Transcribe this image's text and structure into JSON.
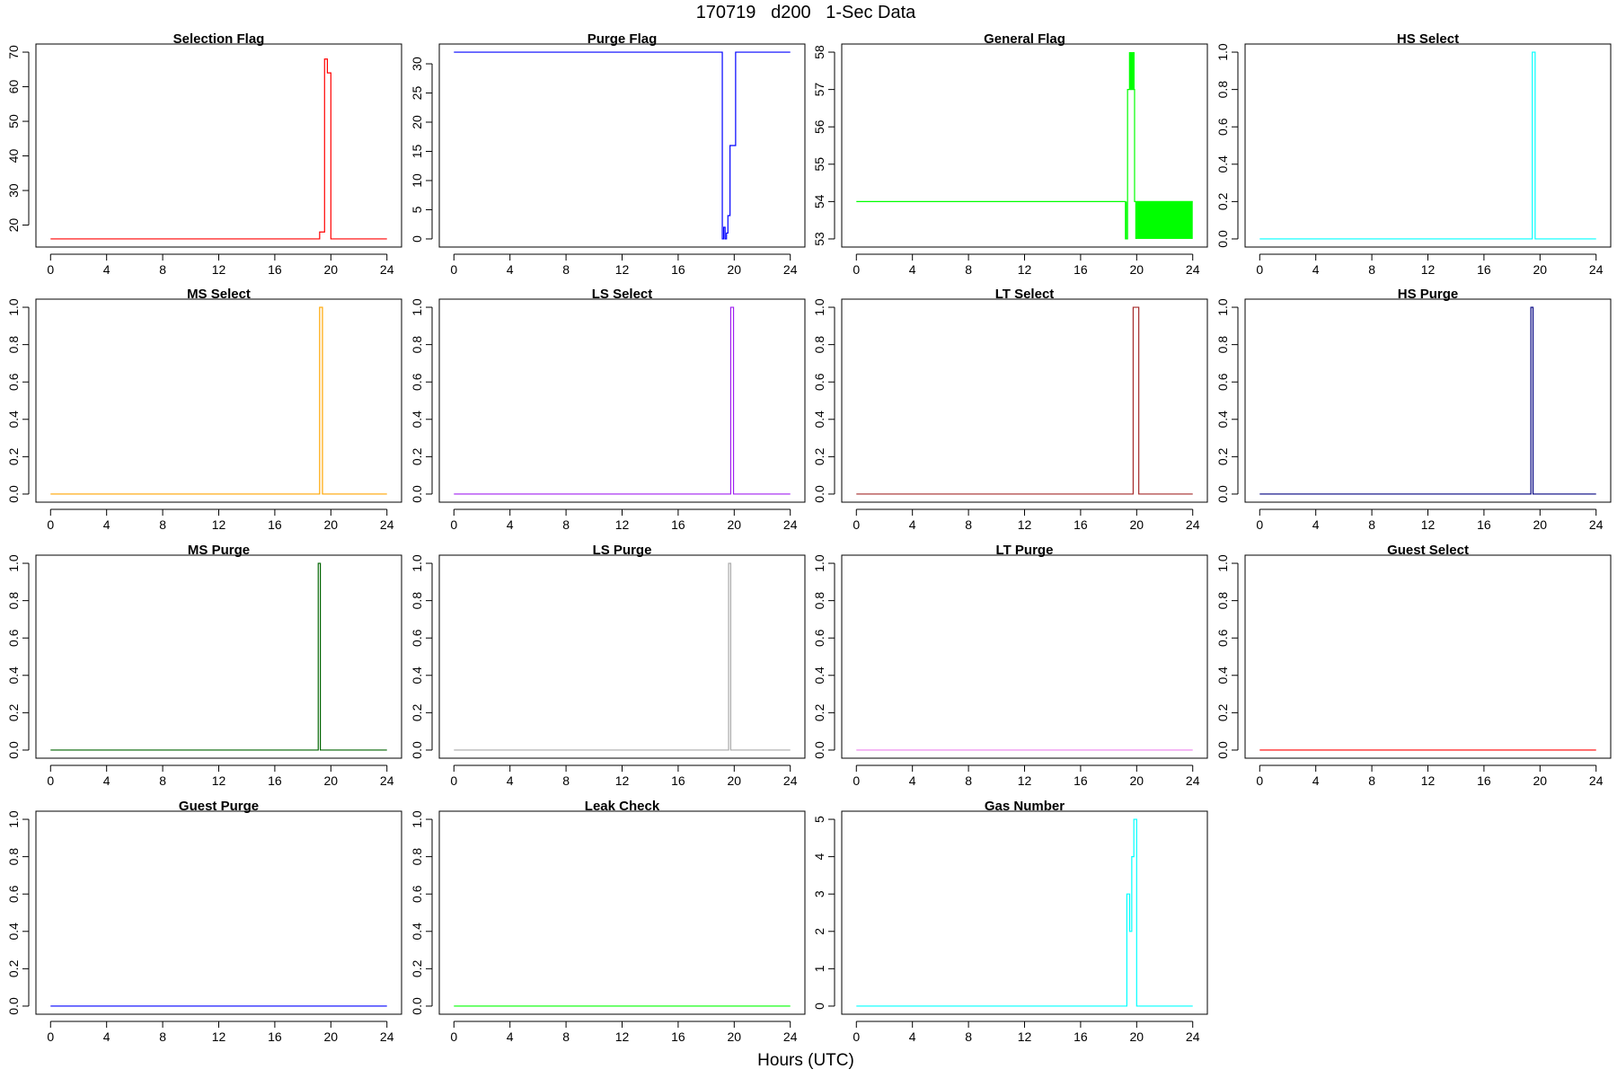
{
  "figure": {
    "title": "170719   d200   1-Sec Data",
    "xlabel": "Hours (UTC)"
  },
  "chart_data": [
    {
      "type": "line",
      "step": true,
      "title": "Selection Flag",
      "color": "#ff0000",
      "xlim": [
        0,
        24
      ],
      "xticks": [
        0,
        4,
        8,
        12,
        16,
        20,
        24
      ],
      "ylim": [
        16,
        70
      ],
      "yticks": [
        20,
        30,
        40,
        50,
        60,
        70
      ],
      "x": [
        0,
        19.2,
        19.2,
        19.55,
        19.55,
        19.75,
        19.75,
        20.0,
        20.0,
        24
      ],
      "y": [
        16,
        16,
        18,
        18,
        68,
        68,
        64,
        64,
        16,
        16
      ]
    },
    {
      "type": "line",
      "step": true,
      "title": "Purge Flag",
      "color": "#0000ff",
      "xlim": [
        0,
        24
      ],
      "xticks": [
        0,
        4,
        8,
        12,
        16,
        20,
        24
      ],
      "ylim": [
        0,
        32
      ],
      "yticks": [
        0,
        5,
        10,
        15,
        20,
        25,
        30
      ],
      "x": [
        0,
        19.15,
        19.15,
        19.25,
        19.25,
        19.35,
        19.35,
        19.45,
        19.45,
        19.55,
        19.55,
        19.7,
        19.7,
        20.1,
        20.1,
        24
      ],
      "y": [
        32,
        32,
        0,
        0,
        2,
        2,
        0,
        0,
        1,
        1,
        4,
        4,
        16,
        16,
        32,
        32
      ]
    },
    {
      "type": "line",
      "step": true,
      "title": "General Flag",
      "color": "#00ff00",
      "xlim": [
        0,
        24
      ],
      "xticks": [
        0,
        4,
        8,
        12,
        16,
        20,
        24
      ],
      "ylim": [
        53,
        58
      ],
      "yticks": [
        53,
        54,
        55,
        56,
        57,
        58
      ],
      "x": [
        0,
        19.2,
        19.2,
        19.35,
        19.35,
        19.85,
        19.85,
        24
      ],
      "y": [
        54,
        54,
        53,
        53,
        57,
        57,
        54,
        54
      ],
      "filled_bands": [
        {
          "x": [
            19.2,
            19.3
          ],
          "y": [
            53,
            54
          ]
        },
        {
          "x": [
            19.45,
            19.85
          ],
          "y": [
            57,
            58
          ]
        },
        {
          "x": [
            19.9,
            24
          ],
          "y": [
            53,
            54
          ]
        }
      ]
    },
    {
      "type": "line",
      "step": true,
      "title": "HS Select",
      "color": "#00ffff",
      "xlim": [
        0,
        24
      ],
      "xticks": [
        0,
        4,
        8,
        12,
        16,
        20,
        24
      ],
      "ylim": [
        0,
        1
      ],
      "yticks": [
        0.0,
        0.2,
        0.4,
        0.6,
        0.8,
        1.0
      ],
      "x": [
        0,
        19.45,
        19.45,
        19.65,
        19.65,
        24
      ],
      "y": [
        0,
        0,
        1,
        1,
        0,
        0
      ]
    },
    {
      "type": "line",
      "step": true,
      "title": "MS Select",
      "color": "#ffa500",
      "xlim": [
        0,
        24
      ],
      "xticks": [
        0,
        4,
        8,
        12,
        16,
        20,
        24
      ],
      "ylim": [
        0,
        1
      ],
      "yticks": [
        0.0,
        0.2,
        0.4,
        0.6,
        0.8,
        1.0
      ],
      "x": [
        0,
        19.2,
        19.2,
        19.4,
        19.4,
        24
      ],
      "y": [
        0,
        0,
        1,
        1,
        0,
        0
      ]
    },
    {
      "type": "line",
      "step": true,
      "title": "LS Select",
      "color": "#a020f0",
      "xlim": [
        0,
        24
      ],
      "xticks": [
        0,
        4,
        8,
        12,
        16,
        20,
        24
      ],
      "ylim": [
        0,
        1
      ],
      "yticks": [
        0.0,
        0.2,
        0.4,
        0.6,
        0.8,
        1.0
      ],
      "x": [
        0,
        19.75,
        19.75,
        19.95,
        19.95,
        24
      ],
      "y": [
        0,
        0,
        1,
        1,
        0,
        0
      ]
    },
    {
      "type": "line",
      "step": true,
      "title": "LT Select",
      "color": "#a52a2a",
      "xlim": [
        0,
        24
      ],
      "xticks": [
        0,
        4,
        8,
        12,
        16,
        20,
        24
      ],
      "ylim": [
        0,
        1
      ],
      "yticks": [
        0.0,
        0.2,
        0.4,
        0.6,
        0.8,
        1.0
      ],
      "x": [
        0,
        19.75,
        19.75,
        20.15,
        20.15,
        24
      ],
      "y": [
        0,
        0,
        1,
        1,
        0,
        0
      ]
    },
    {
      "type": "line",
      "step": true,
      "title": "HS Purge",
      "color": "#000080",
      "xlim": [
        0,
        24
      ],
      "xticks": [
        0,
        4,
        8,
        12,
        16,
        20,
        24
      ],
      "ylim": [
        0,
        1
      ],
      "yticks": [
        0.0,
        0.2,
        0.4,
        0.6,
        0.8,
        1.0
      ],
      "x": [
        0,
        19.35,
        19.35,
        19.5,
        19.5,
        24
      ],
      "y": [
        0,
        0,
        1,
        1,
        0,
        0
      ]
    },
    {
      "type": "line",
      "step": true,
      "title": "MS Purge",
      "color": "#006400",
      "xlim": [
        0,
        24
      ],
      "xticks": [
        0,
        4,
        8,
        12,
        16,
        20,
        24
      ],
      "ylim": [
        0,
        1
      ],
      "yticks": [
        0.0,
        0.2,
        0.4,
        0.6,
        0.8,
        1.0
      ],
      "x": [
        0,
        19.1,
        19.1,
        19.25,
        19.25,
        24
      ],
      "y": [
        0,
        0,
        1,
        1,
        0,
        0
      ]
    },
    {
      "type": "line",
      "step": true,
      "title": "LS Purge",
      "color": "#a9a9a9",
      "xlim": [
        0,
        24
      ],
      "xticks": [
        0,
        4,
        8,
        12,
        16,
        20,
        24
      ],
      "ylim": [
        0,
        1
      ],
      "yticks": [
        0.0,
        0.2,
        0.4,
        0.6,
        0.8,
        1.0
      ],
      "x": [
        0,
        19.6,
        19.6,
        19.75,
        19.75,
        24
      ],
      "y": [
        0,
        0,
        1,
        1,
        0,
        0
      ]
    },
    {
      "type": "line",
      "step": true,
      "title": "LT Purge",
      "color": "#ee82ee",
      "xlim": [
        0,
        24
      ],
      "xticks": [
        0,
        4,
        8,
        12,
        16,
        20,
        24
      ],
      "ylim": [
        0,
        1
      ],
      "yticks": [
        0.0,
        0.2,
        0.4,
        0.6,
        0.8,
        1.0
      ],
      "x": [
        0,
        24
      ],
      "y": [
        0,
        0
      ]
    },
    {
      "type": "line",
      "step": true,
      "title": "Guest Select",
      "color": "#ff0000",
      "xlim": [
        0,
        24
      ],
      "xticks": [
        0,
        4,
        8,
        12,
        16,
        20,
        24
      ],
      "ylim": [
        0,
        1
      ],
      "yticks": [
        0.0,
        0.2,
        0.4,
        0.6,
        0.8,
        1.0
      ],
      "x": [
        0,
        24
      ],
      "y": [
        0,
        0
      ]
    },
    {
      "type": "line",
      "step": true,
      "title": "Guest Purge",
      "color": "#0000ff",
      "xlim": [
        0,
        24
      ],
      "xticks": [
        0,
        4,
        8,
        12,
        16,
        20,
        24
      ],
      "ylim": [
        0,
        1
      ],
      "yticks": [
        0.0,
        0.2,
        0.4,
        0.6,
        0.8,
        1.0
      ],
      "x": [
        0,
        24
      ],
      "y": [
        0,
        0
      ]
    },
    {
      "type": "line",
      "step": true,
      "title": "Leak Check",
      "color": "#00ff00",
      "xlim": [
        0,
        24
      ],
      "xticks": [
        0,
        4,
        8,
        12,
        16,
        20,
        24
      ],
      "ylim": [
        0,
        1
      ],
      "yticks": [
        0.0,
        0.2,
        0.4,
        0.6,
        0.8,
        1.0
      ],
      "x": [
        0,
        24
      ],
      "y": [
        0,
        0
      ]
    },
    {
      "type": "line",
      "step": true,
      "title": "Gas Number",
      "color": "#00ffff",
      "xlim": [
        0,
        24
      ],
      "xticks": [
        0,
        4,
        8,
        12,
        16,
        20,
        24
      ],
      "ylim": [
        0,
        5
      ],
      "yticks": [
        0,
        1,
        2,
        3,
        4,
        5
      ],
      "x": [
        0,
        19.3,
        19.3,
        19.5,
        19.5,
        19.65,
        19.65,
        19.8,
        19.8,
        20.0,
        20.0,
        24
      ],
      "y": [
        0,
        0,
        3,
        3,
        2,
        2,
        4,
        4,
        5,
        5,
        0,
        0
      ]
    }
  ]
}
